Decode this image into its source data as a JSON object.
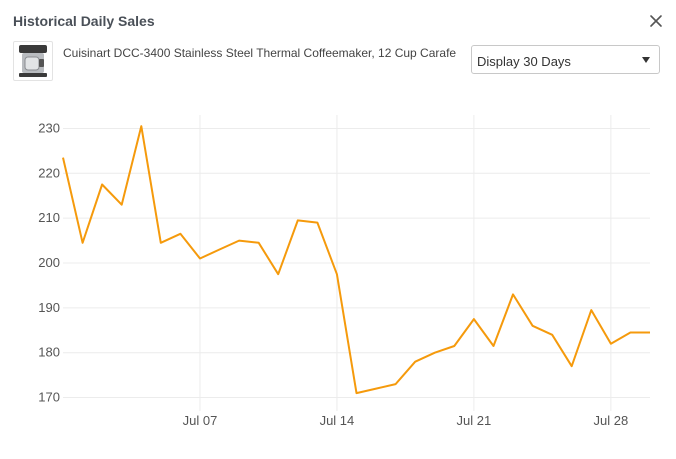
{
  "header": {
    "title": "Historical Daily Sales"
  },
  "product": {
    "name": "Cuisinart DCC-3400 Stainless Steel Thermal Coffeemaker, 12 Cup Carafe"
  },
  "display_select": {
    "selected": "Display 30 Days"
  },
  "icons": {
    "close": "close-icon",
    "dropdown": "caret-down-icon",
    "thumbnail": "coffeemaker-thumbnail"
  },
  "colors": {
    "line": "#f59a0c",
    "grid": "#ececec",
    "tick_text": "#555555"
  },
  "chart_data": {
    "type": "line",
    "title": "",
    "xlabel": "",
    "ylabel": "",
    "x": [
      "Jun 30",
      "Jul 01",
      "Jul 02",
      "Jul 03",
      "Jul 04",
      "Jul 05",
      "Jul 06",
      "Jul 07",
      "Jul 08",
      "Jul 09",
      "Jul 10",
      "Jul 11",
      "Jul 12",
      "Jul 13",
      "Jul 14",
      "Jul 15",
      "Jul 16",
      "Jul 17",
      "Jul 18",
      "Jul 19",
      "Jul 20",
      "Jul 21",
      "Jul 22",
      "Jul 23",
      "Jul 24",
      "Jul 25",
      "Jul 26",
      "Jul 27",
      "Jul 28",
      "Jul 29",
      "Jul 30"
    ],
    "series": [
      {
        "values": [
          223.5,
          204.5,
          217.5,
          213,
          230.5,
          204.5,
          206.5,
          201,
          203,
          205,
          204.5,
          197.5,
          209.5,
          209,
          197.5,
          171,
          172,
          173,
          178,
          180,
          181.5,
          187.5,
          181.5,
          193,
          186,
          184,
          177,
          189.5,
          182,
          184.5,
          184.5
        ]
      }
    ],
    "ylim": [
      167,
      233
    ],
    "yticks": [
      170,
      180,
      190,
      200,
      210,
      220,
      230
    ],
    "xtick_labels": [
      "Jul 07",
      "Jul 14",
      "Jul 21",
      "Jul 28"
    ],
    "grid": true,
    "legend": "none"
  }
}
